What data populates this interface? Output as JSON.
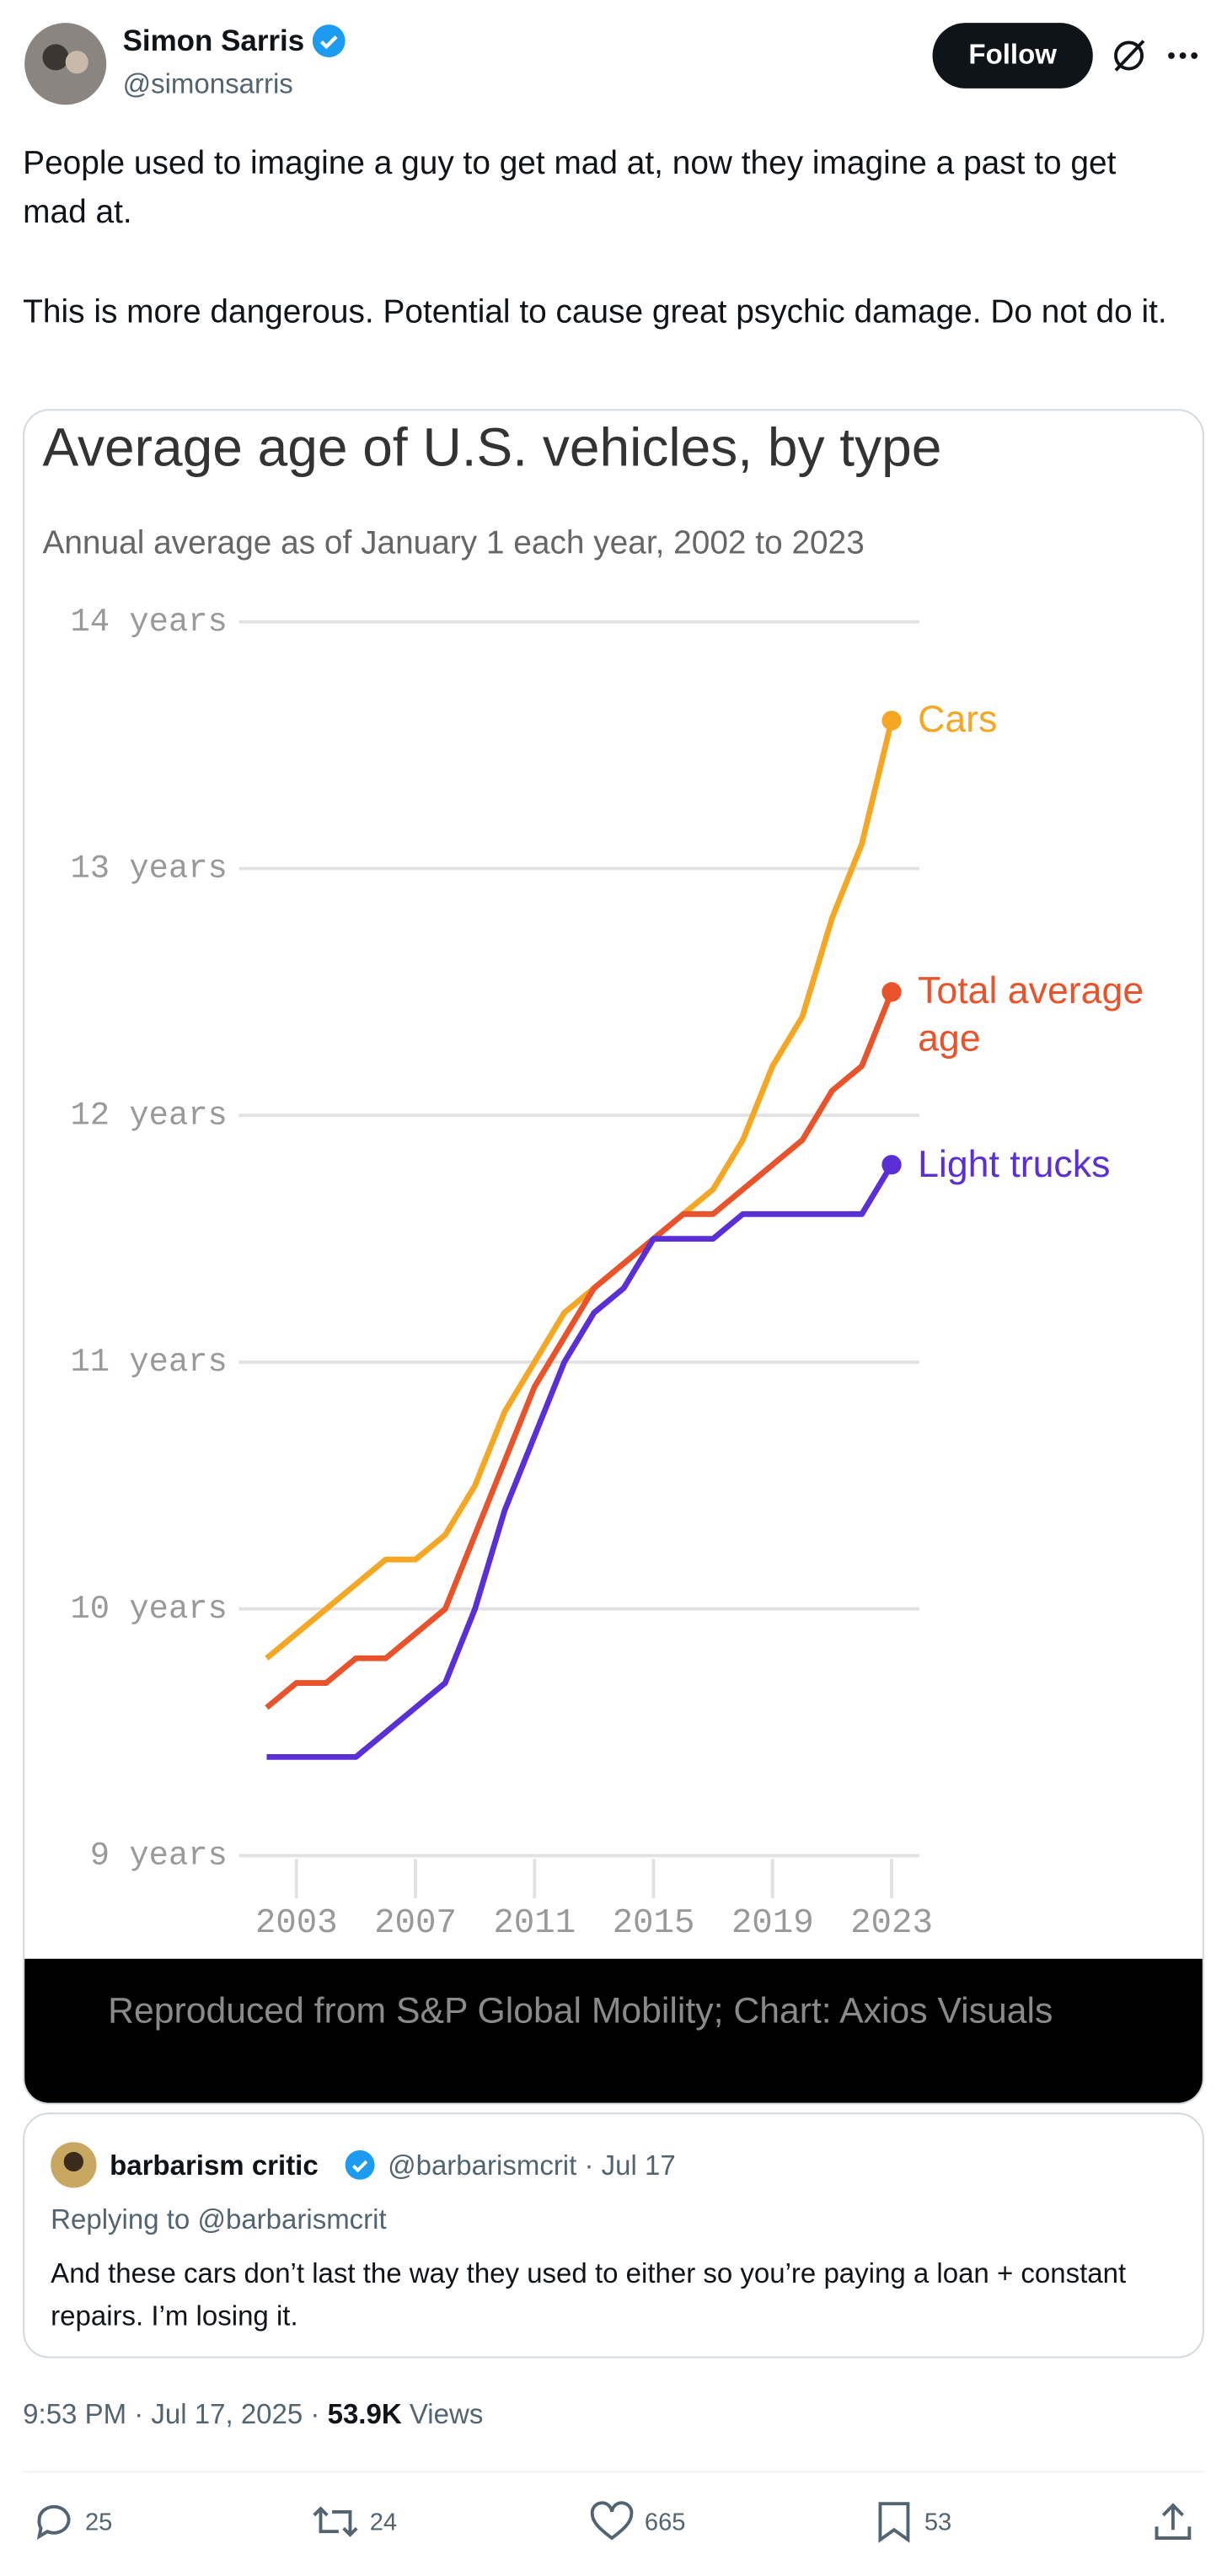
{
  "author": {
    "name": "Simon Sarris",
    "handle": "@simonsarris",
    "follow": "Follow"
  },
  "post": {
    "paragraphs": [
      "People used to imagine a guy to get mad at, now they imagine a past to get mad at.",
      "This is more dangerous. Potential to cause great psychic damage. Do not do it."
    ],
    "caption": "Reproduced from S&P Global Mobility; Chart: Axios Visuals"
  },
  "chart_data": {
    "type": "line",
    "title": "Average age of U.S. vehicles, by type",
    "subtitle": "Annual average as of January 1 each year, 2002 to 2023",
    "x": [
      2002,
      2003,
      2004,
      2005,
      2006,
      2007,
      2008,
      2009,
      2010,
      2011,
      2012,
      2013,
      2014,
      2015,
      2016,
      2017,
      2018,
      2019,
      2020,
      2021,
      2022,
      2023
    ],
    "series": [
      {
        "name": "Cars",
        "color": "#f5a623",
        "values": [
          9.8,
          9.9,
          10.0,
          10.1,
          10.2,
          10.2,
          10.3,
          10.5,
          10.8,
          11.0,
          11.2,
          11.3,
          11.4,
          11.5,
          11.6,
          11.7,
          11.9,
          12.2,
          12.4,
          12.8,
          13.1,
          13.6
        ]
      },
      {
        "name": "Total average age",
        "color": "#e8532b",
        "values": [
          9.6,
          9.7,
          9.7,
          9.8,
          9.8,
          9.9,
          10.0,
          10.3,
          10.6,
          10.9,
          11.1,
          11.3,
          11.4,
          11.5,
          11.6,
          11.6,
          11.7,
          11.8,
          11.9,
          12.1,
          12.2,
          12.5
        ]
      },
      {
        "name": "Light trucks",
        "color": "#5b2fd6",
        "values": [
          9.4,
          9.4,
          9.4,
          9.4,
          9.5,
          9.6,
          9.7,
          10.0,
          10.4,
          10.7,
          11.0,
          11.2,
          11.3,
          11.5,
          11.5,
          11.5,
          11.6,
          11.6,
          11.6,
          11.6,
          11.6,
          11.8
        ]
      }
    ],
    "xlim": [
      2002,
      2023
    ],
    "xticks": [
      2003,
      2007,
      2011,
      2015,
      2019,
      2023
    ],
    "ylim": [
      9,
      14
    ],
    "yticks": [
      {
        "value": 9,
        "label": "9 years"
      },
      {
        "value": 10,
        "label": "10 years"
      },
      {
        "value": 11,
        "label": "11 years"
      },
      {
        "value": 12,
        "label": "12 years"
      },
      {
        "value": 13,
        "label": "13 years"
      },
      {
        "value": 14,
        "label": "14 years"
      }
    ],
    "grid": true
  },
  "quote": {
    "name": "barbarism critic",
    "handle": "@barbarismcrit",
    "date": "· Jul 17",
    "replying": "Replying to @barbarismcrit",
    "text": "And these cars don’t last the way they used to either so you’re paying a loan + constant repairs. I’m losing it."
  },
  "meta": {
    "time": "9:53 PM · Jul 17, 2025 ·",
    "views_count": "53.9K",
    "views": "Views"
  },
  "stats": {
    "replies": 25,
    "reposts": 24,
    "likes": 665,
    "bookmarks": 53
  }
}
